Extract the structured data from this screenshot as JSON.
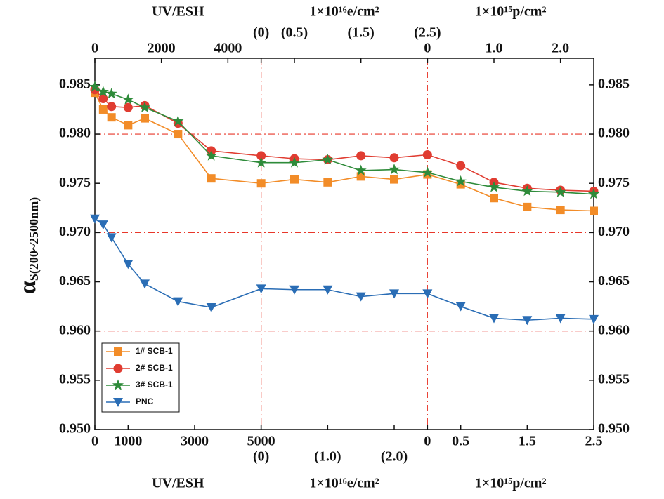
{
  "chart_data": {
    "type": "line",
    "ylabel": {
      "symbol": "α",
      "subscript": "S(200~2500nm)"
    },
    "ylim": [
      0.95,
      0.9877
    ],
    "yticks": [
      {
        "value": 0.95,
        "label": "0.950"
      },
      {
        "value": 0.955,
        "label": "0.955"
      },
      {
        "value": 0.96,
        "label": "0.960"
      },
      {
        "value": 0.965,
        "label": "0.965"
      },
      {
        "value": 0.97,
        "label": "0.970"
      },
      {
        "value": 0.975,
        "label": "0.975"
      },
      {
        "value": 0.98,
        "label": "0.980"
      },
      {
        "value": 0.985,
        "label": "0.985"
      }
    ],
    "grid_y": [
      0.96,
      0.97,
      0.98
    ],
    "grid_color": "#e8372a",
    "legend": "lower left",
    "panels": [
      {
        "xlim": [
          0,
          5000
        ],
        "x": [
          0,
          250,
          500,
          1000,
          1500,
          2500,
          3500,
          5000
        ],
        "xlabel_bottom": "UV/ESH",
        "xlabel_top": "UV/ESH",
        "xticks_bottom": [
          0,
          1000,
          3000,
          5000
        ],
        "xticks_top": [
          0,
          2000,
          4000
        ]
      },
      {
        "xlim": [
          0,
          2.5
        ],
        "x": [
          0.5,
          1.0,
          1.5,
          2.0,
          2.5
        ],
        "xlabel_bottom": "1×10¹⁶e/cm²",
        "xlabel_top": "1×10¹⁶e/cm²",
        "xticks_bottom": [
          {
            "value": 0,
            "label": "(0)"
          },
          {
            "value": 1.0,
            "label": "(1.0)"
          },
          {
            "value": 2.0,
            "label": "(2.0)"
          }
        ],
        "xticks_top": [
          {
            "value": 0,
            "label": "(0)"
          },
          {
            "value": 0.5,
            "label": "(0.5)"
          },
          {
            "value": 1.5,
            "label": "(1.5)"
          },
          {
            "value": 2.5,
            "label": "(2.5)"
          }
        ]
      },
      {
        "xlim": [
          0,
          2.5
        ],
        "x": [
          0.5,
          1.0,
          1.5,
          2.0,
          2.5
        ],
        "xlabel_bottom": "1×10¹⁵p/cm²",
        "xlabel_top": "1×10¹⁵p/cm²",
        "xticks_bottom": [
          0,
          0.5,
          1.5,
          2.5
        ],
        "xticks_top": [
          0,
          {
            "value": 1.0,
            "label": "1.0"
          },
          {
            "value": 2.0,
            "label": "2.0"
          }
        ]
      }
    ],
    "series": [
      {
        "name": "1# SCB-1",
        "color": "#f28c28",
        "marker": "square",
        "values": [
          [
            0.9842,
            0.9825,
            0.9817,
            0.9809,
            0.9816,
            0.98,
            0.9755,
            0.975
          ],
          [
            0.9754,
            0.9751,
            0.9757,
            0.9754,
            0.9759
          ],
          [
            0.9749,
            0.9735,
            0.9726,
            0.9723,
            0.9722
          ]
        ]
      },
      {
        "name": "2# SCB-1",
        "color": "#e03c31",
        "marker": "circle",
        "values": [
          [
            0.9845,
            0.9836,
            0.9828,
            0.9827,
            0.9829,
            0.9811,
            0.9783,
            0.9778
          ],
          [
            0.9775,
            0.9774,
            0.9778,
            0.9776,
            0.9779
          ],
          [
            0.9768,
            0.9751,
            0.9745,
            0.9743,
            0.9742
          ]
        ]
      },
      {
        "name": "3# SCB-1",
        "color": "#2e8b3a",
        "marker": "star",
        "values": [
          [
            0.9848,
            0.9843,
            0.9841,
            0.9835,
            0.9827,
            0.9813,
            0.9778,
            0.9771
          ],
          [
            0.9771,
            0.9774,
            0.9763,
            0.9764,
            0.9761
          ],
          [
            0.9752,
            0.9746,
            0.9742,
            0.9741,
            0.9739
          ]
        ]
      },
      {
        "name": "PNC",
        "color": "#2a6db5",
        "marker": "triangle-down",
        "values": [
          [
            0.9714,
            0.9708,
            0.9695,
            0.9668,
            0.9648,
            0.963,
            0.9624,
            0.9643
          ],
          [
            0.9642,
            0.9642,
            0.9635,
            0.9638,
            0.9638
          ],
          [
            0.9625,
            0.9613,
            0.9611,
            0.9613,
            0.9612
          ]
        ]
      }
    ]
  }
}
